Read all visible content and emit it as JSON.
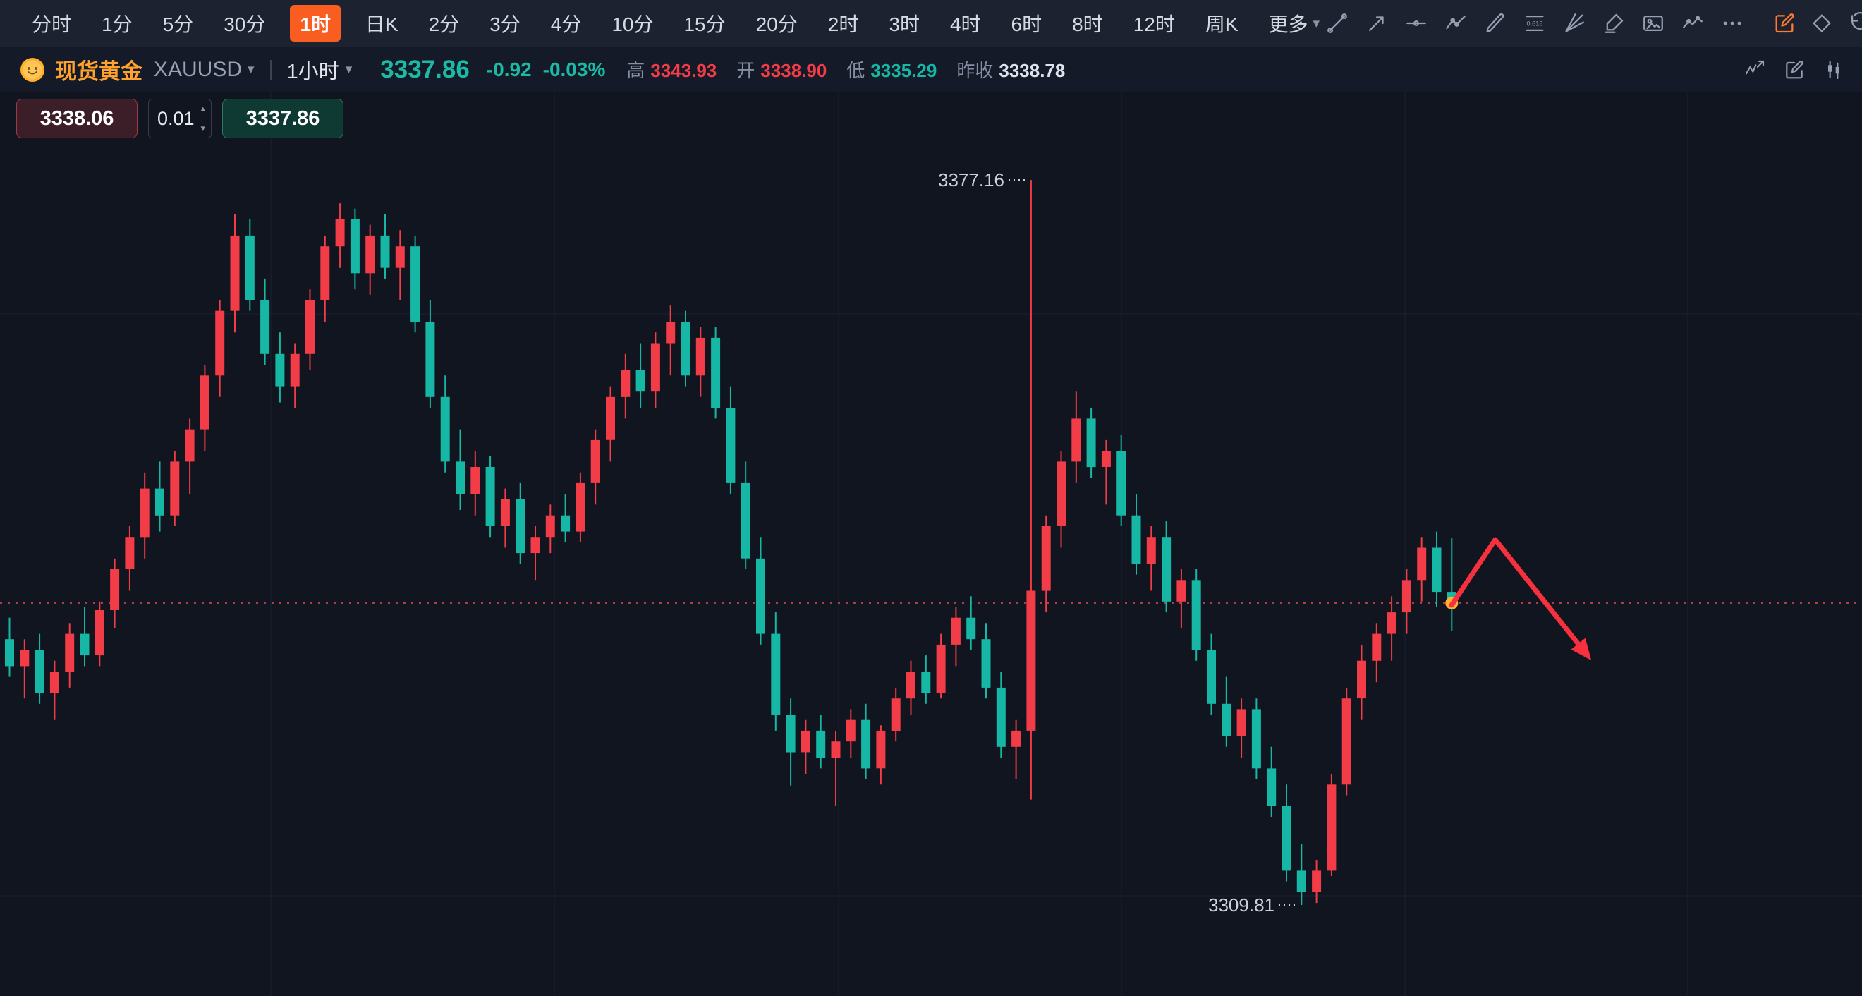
{
  "toolbar": {
    "timeframes": [
      {
        "label": "分时",
        "active": false
      },
      {
        "label": "1分",
        "active": false
      },
      {
        "label": "5分",
        "active": false
      },
      {
        "label": "30分",
        "active": false
      },
      {
        "label": "1时",
        "active": true
      },
      {
        "label": "日K",
        "active": false
      },
      {
        "label": "2分",
        "active": false
      },
      {
        "label": "3分",
        "active": false
      },
      {
        "label": "4分",
        "active": false
      },
      {
        "label": "10分",
        "active": false
      },
      {
        "label": "15分",
        "active": false
      },
      {
        "label": "20分",
        "active": false
      },
      {
        "label": "2时",
        "active": false
      },
      {
        "label": "3时",
        "active": false
      },
      {
        "label": "4时",
        "active": false
      },
      {
        "label": "6时",
        "active": false
      },
      {
        "label": "8时",
        "active": false
      },
      {
        "label": "12时",
        "active": false
      },
      {
        "label": "周K",
        "active": false
      }
    ],
    "more_label": "更多",
    "draw_tools": [
      {
        "name": "trend-line-icon"
      },
      {
        "name": "ray-arrow-icon"
      },
      {
        "name": "horizontal-line-icon"
      },
      {
        "name": "polyline-icon"
      },
      {
        "name": "pencil-icon"
      },
      {
        "name": "fib-0618-icon"
      },
      {
        "name": "gann-fan-icon"
      },
      {
        "name": "marker-icon"
      },
      {
        "name": "image-icon"
      },
      {
        "name": "indicator-line-icon"
      },
      {
        "name": "more-icon"
      }
    ],
    "right_tools": [
      {
        "name": "edit-orange-icon",
        "color": "#ff7a2f"
      },
      {
        "name": "diamond-icon"
      },
      {
        "name": "undo-icon"
      },
      {
        "name": "lock-icon"
      }
    ]
  },
  "quote_bar": {
    "symbol_name": "现货黄金",
    "symbol_code": "XAUUSD",
    "interval": "1小时",
    "last_price": "3337.86",
    "change": "-0.92",
    "change_pct": "-0.03%",
    "price_color": "#1bbaa5",
    "stats": [
      {
        "label": "高",
        "value": "3343.93",
        "color": "#f23c47"
      },
      {
        "label": "开",
        "value": "3338.90",
        "color": "#f23c47"
      },
      {
        "label": "低",
        "value": "3335.29",
        "color": "#16b8a5"
      },
      {
        "label": "昨收",
        "value": "3338.78",
        "color": "#dfe3ee"
      }
    ],
    "right_icons": [
      {
        "name": "compare-icon"
      },
      {
        "name": "edit-note-icon"
      },
      {
        "name": "panel-icon"
      }
    ]
  },
  "trade_panel": {
    "sell_price": "3338.06",
    "quantity": "0.01",
    "buy_price": "3337.86"
  },
  "colors": {
    "accent_orange": "#f95d1f",
    "brand_gold": "#ffa12e",
    "up_red": "#f23c47",
    "down_green": "#16b8a5"
  },
  "chart_data": {
    "type": "candlestick",
    "title": "现货黄金 XAUUSD 1小时",
    "ylim": [
      3301.36,
      3385.36
    ],
    "up_color": "#f23c47",
    "down_color": "#16b8a5",
    "candles": [
      [
        3334.5,
        3336.5,
        3331,
        3332
      ],
      [
        3332,
        3334.5,
        3329,
        3333.5
      ],
      [
        3333.5,
        3335,
        3328.5,
        3329.5
      ],
      [
        3329.5,
        3332.5,
        3327,
        3331.5
      ],
      [
        3331.5,
        3336,
        3330,
        3335
      ],
      [
        3335,
        3337.5,
        3332,
        3333
      ],
      [
        3333,
        3338,
        3332,
        3337.2
      ],
      [
        3337.2,
        3342,
        3335.5,
        3341
      ],
      [
        3341,
        3345,
        3339,
        3344
      ],
      [
        3344,
        3350,
        3342,
        3348.5
      ],
      [
        3348.5,
        3351,
        3344.5,
        3346
      ],
      [
        3346,
        3352,
        3345,
        3351
      ],
      [
        3351,
        3355,
        3348,
        3354
      ],
      [
        3354,
        3360,
        3352,
        3359
      ],
      [
        3359,
        3366,
        3357,
        3365
      ],
      [
        3365,
        3374,
        3363,
        3372
      ],
      [
        3372,
        3373.5,
        3365,
        3366
      ],
      [
        3366,
        3368,
        3360,
        3361
      ],
      [
        3361,
        3363,
        3356.5,
        3358
      ],
      [
        3358,
        3362,
        3356,
        3361
      ],
      [
        3361,
        3367,
        3359.5,
        3366
      ],
      [
        3366,
        3372,
        3364,
        3371
      ],
      [
        3371,
        3375,
        3369,
        3373.5
      ],
      [
        3373.5,
        3374.5,
        3367,
        3368.5
      ],
      [
        3368.5,
        3373,
        3366.5,
        3372
      ],
      [
        3372,
        3374,
        3368,
        3369
      ],
      [
        3369,
        3372.5,
        3366,
        3371
      ],
      [
        3371,
        3372,
        3363,
        3364
      ],
      [
        3364,
        3366,
        3356,
        3357
      ],
      [
        3357,
        3359,
        3350,
        3351
      ],
      [
        3351,
        3354,
        3346.5,
        3348
      ],
      [
        3348,
        3352,
        3346,
        3350.5
      ],
      [
        3350.5,
        3351.5,
        3344,
        3345
      ],
      [
        3345,
        3348.5,
        3343,
        3347.5
      ],
      [
        3347.5,
        3349,
        3341.5,
        3342.5
      ],
      [
        3342.5,
        3345,
        3340,
        3344
      ],
      [
        3344,
        3347,
        3342.5,
        3346
      ],
      [
        3346,
        3348,
        3343.5,
        3344.5
      ],
      [
        3344.5,
        3350,
        3343.5,
        3349
      ],
      [
        3349,
        3354,
        3347,
        3353
      ],
      [
        3353,
        3358,
        3351,
        3357
      ],
      [
        3357,
        3361,
        3355,
        3359.5
      ],
      [
        3359.5,
        3362,
        3356,
        3357.5
      ],
      [
        3357.5,
        3363,
        3356,
        3362
      ],
      [
        3362,
        3365.5,
        3359,
        3364
      ],
      [
        3364,
        3365,
        3358,
        3359
      ],
      [
        3359,
        3363.5,
        3357,
        3362.5
      ],
      [
        3362.5,
        3363.5,
        3355,
        3356
      ],
      [
        3356,
        3358,
        3348,
        3349
      ],
      [
        3349,
        3351,
        3341,
        3342
      ],
      [
        3342,
        3344,
        3334,
        3335
      ],
      [
        3335,
        3337,
        3326,
        3327.5
      ],
      [
        3327.5,
        3329,
        3320.9,
        3324
      ],
      [
        3324,
        3327,
        3322,
        3326
      ],
      [
        3326,
        3327.5,
        3322.5,
        3323.5
      ],
      [
        3323.5,
        3326,
        3319,
        3325
      ],
      [
        3325,
        3328,
        3323.5,
        3327
      ],
      [
        3327,
        3328.5,
        3321.5,
        3322.5
      ],
      [
        3322.5,
        3326.5,
        3321,
        3326
      ],
      [
        3326,
        3330,
        3325,
        3329
      ],
      [
        3329,
        3332.5,
        3327.5,
        3331.5
      ],
      [
        3331.5,
        3333,
        3328.5,
        3329.5
      ],
      [
        3329.5,
        3335,
        3329,
        3334
      ],
      [
        3334,
        3337.5,
        3332,
        3336.5
      ],
      [
        3336.5,
        3338.5,
        3333.5,
        3334.5
      ],
      [
        3334.5,
        3336,
        3329,
        3330
      ],
      [
        3330,
        3331.5,
        3323.5,
        3324.5
      ],
      [
        3324.5,
        3327,
        3321.5,
        3326
      ],
      [
        3326,
        3377.16,
        3319.6,
        3339
      ],
      [
        3339,
        3346,
        3337,
        3345
      ],
      [
        3345,
        3352,
        3343,
        3351
      ],
      [
        3351,
        3357.5,
        3349,
        3355
      ],
      [
        3355,
        3356,
        3349.5,
        3350.5
      ],
      [
        3350.5,
        3353,
        3347,
        3352
      ],
      [
        3352,
        3353.5,
        3345,
        3346
      ],
      [
        3346,
        3348,
        3340.5,
        3341.5
      ],
      [
        3341.5,
        3345,
        3339,
        3344
      ],
      [
        3344,
        3345.5,
        3337,
        3338
      ],
      [
        3338,
        3341,
        3335.5,
        3340
      ],
      [
        3340,
        3341,
        3332.5,
        3333.5
      ],
      [
        3333.5,
        3335,
        3327.5,
        3328.5
      ],
      [
        3328.5,
        3331,
        3324.5,
        3325.5
      ],
      [
        3325.5,
        3329,
        3323.5,
        3328
      ],
      [
        3328,
        3329,
        3321.5,
        3322.5
      ],
      [
        3322.5,
        3324.5,
        3318,
        3319
      ],
      [
        3319,
        3321,
        3312,
        3313
      ],
      [
        3313,
        3315.5,
        3309.81,
        3311
      ],
      [
        3311,
        3314,
        3310,
        3313
      ],
      [
        3313,
        3322,
        3312.5,
        3321
      ],
      [
        3321,
        3330,
        3320,
        3329
      ],
      [
        3329,
        3334,
        3327,
        3332.5
      ],
      [
        3332.5,
        3336,
        3330.5,
        3335
      ],
      [
        3335,
        3338.5,
        3332.5,
        3337
      ],
      [
        3337,
        3341,
        3335,
        3340
      ],
      [
        3340,
        3344,
        3338,
        3343
      ],
      [
        3343,
        3344.5,
        3337.5,
        3338.9
      ],
      [
        3338.9,
        3343.93,
        3335.29,
        3337.86
      ]
    ],
    "annotations": {
      "high_label": "3377.16",
      "high_index": 68,
      "low_label": "3309.81",
      "low_index": 86,
      "last_price": 3337.86,
      "arrow_points": [
        [
          2058,
          728
        ],
        [
          2120,
          635
        ],
        [
          2245,
          792
        ]
      ],
      "colors": {
        "price_line": "#e84a52",
        "marker": "#ffb02e",
        "arrow": "#f7303e",
        "label": "#ccd2dd"
      }
    }
  }
}
